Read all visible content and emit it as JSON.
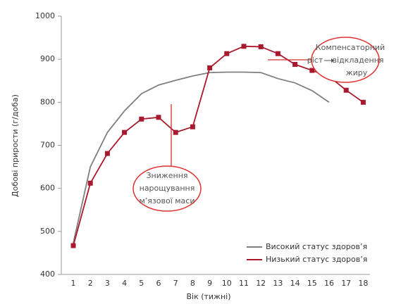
{
  "chart_data": {
    "type": "line",
    "x_label": "Вік (тижні)",
    "y_label": "Добові прирости (г/доба)",
    "categories": [
      "1",
      "2",
      "3",
      "4",
      "5",
      "6",
      "7",
      "8",
      "9",
      "10",
      "11",
      "12",
      "13",
      "14",
      "15",
      "16",
      "17",
      "18"
    ],
    "series": [
      {
        "name": "Високий статус здоров’я",
        "color": "#7f7f7f",
        "values": [
          473,
          650,
          730,
          780,
          820,
          840,
          851,
          861,
          869,
          870,
          870,
          869,
          855,
          845,
          827,
          800,
          null,
          null
        ]
      },
      {
        "name": "Низький статус здоров’я",
        "color": "#a8192e",
        "values": [
          467,
          612,
          681,
          730,
          761,
          765,
          730,
          743,
          880,
          913,
          930,
          929,
          913,
          888,
          874,
          860,
          828,
          800
        ]
      }
    ],
    "ylim": [
      400,
      1000
    ],
    "yticks": [
      400,
      500,
      600,
      700,
      800,
      900,
      1000
    ],
    "grid": false,
    "legend": "lower right",
    "annotations": [
      {
        "lines": [
          "Зниження",
          "нарощування",
          "м’язової маси"
        ]
      },
      {
        "lines": [
          "Компенсаторний",
          "ріст",
          "відкладення",
          "жиру"
        ]
      }
    ]
  }
}
